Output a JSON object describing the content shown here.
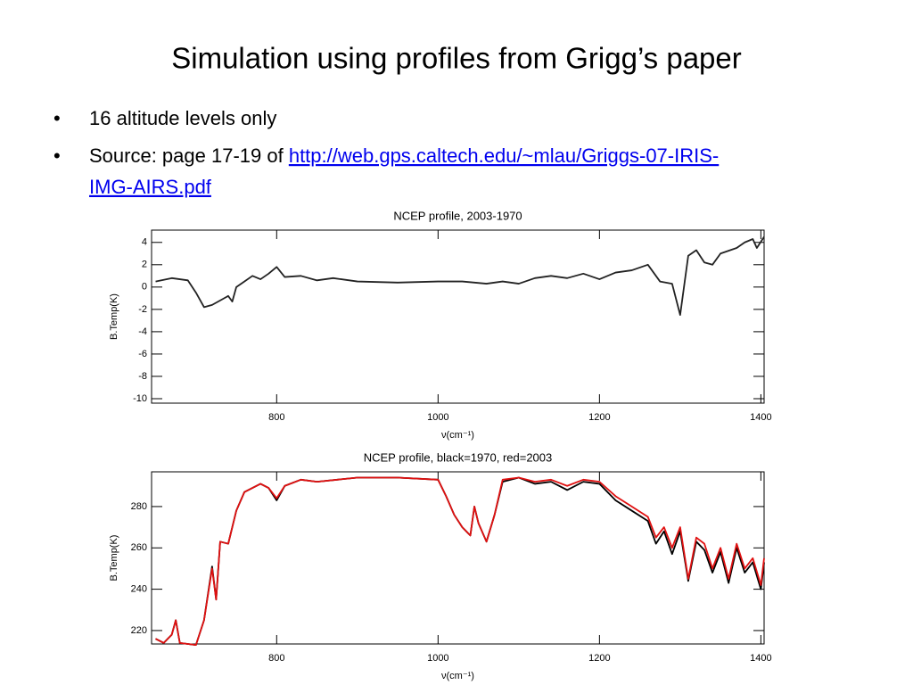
{
  "title": "Simulation using profiles from Grigg’s paper",
  "bullets": [
    {
      "text": "16 altitude levels only"
    },
    {
      "text": "Source: page 17-19 of ",
      "link": [
        "http://web.gps.caltech.edu/~mlau/Griggs-07-IRIS-",
        "IMG-AIRS.pdf"
      ]
    }
  ],
  "chart_data": [
    {
      "type": "line",
      "title": "NCEP profile, 2003-1970",
      "x_label": "ν(cm⁻¹)",
      "y_label": "B.Temp(K)",
      "x": [
        650,
        670,
        690,
        700,
        710,
        720,
        730,
        740,
        745,
        750,
        760,
        770,
        780,
        790,
        800,
        810,
        830,
        850,
        870,
        900,
        950,
        1000,
        1030,
        1060,
        1080,
        1100,
        1120,
        1140,
        1160,
        1180,
        1200,
        1220,
        1240,
        1260,
        1275,
        1290,
        1300,
        1310,
        1320,
        1330,
        1340,
        1350,
        1370,
        1380,
        1390,
        1395,
        1404
      ],
      "values": [
        0.5,
        0.8,
        0.6,
        -0.5,
        -1.8,
        -1.6,
        -1.2,
        -0.8,
        -1.3,
        0,
        0.5,
        1.0,
        0.7,
        1.2,
        1.8,
        0.9,
        1.0,
        0.6,
        0.8,
        0.5,
        0.4,
        0.5,
        0.5,
        0.3,
        0.5,
        0.3,
        0.8,
        1.0,
        0.8,
        1.2,
        0.7,
        1.3,
        1.5,
        2.0,
        0.5,
        0.3,
        -2.5,
        2.8,
        3.3,
        2.2,
        2.0,
        3.0,
        3.5,
        4.0,
        4.3,
        3.5,
        4.5
      ],
      "color": "#222222",
      "xlim": [
        645,
        1404
      ],
      "ylim": [
        -10.4,
        5.1
      ],
      "xticks": [
        800,
        1000,
        1200,
        1400
      ],
      "yticks": [
        4,
        2,
        0,
        -2,
        -4,
        -6,
        -8,
        -10
      ]
    },
    {
      "type": "line",
      "title": "NCEP profile, black=1970, red=2003",
      "x_label": "ν(cm⁻¹)",
      "y_label": "B.Temp(K)",
      "x": [
        650,
        660,
        670,
        675,
        680,
        700,
        710,
        720,
        725,
        730,
        740,
        750,
        760,
        770,
        780,
        790,
        800,
        810,
        830,
        850,
        900,
        950,
        1000,
        1010,
        1020,
        1030,
        1040,
        1045,
        1050,
        1060,
        1070,
        1080,
        1100,
        1120,
        1140,
        1160,
        1180,
        1200,
        1220,
        1240,
        1260,
        1270,
        1280,
        1290,
        1300,
        1310,
        1320,
        1330,
        1340,
        1350,
        1360,
        1370,
        1380,
        1390,
        1400,
        1404
      ],
      "series": [
        {
          "color": "#000000",
          "values": [
            216,
            214,
            218,
            225,
            214,
            213,
            225,
            251,
            235,
            263,
            262,
            278,
            287,
            289,
            291,
            289,
            283,
            290,
            293,
            292,
            294,
            294,
            293,
            285,
            276,
            270,
            266,
            280,
            272,
            263,
            276,
            292,
            294,
            291,
            292,
            288,
            292,
            291,
            283,
            278,
            273,
            262,
            268,
            257,
            268,
            244,
            263,
            259,
            248,
            258,
            243,
            260,
            248,
            253,
            240,
            253
          ]
        },
        {
          "color": "#e01010",
          "values": [
            216,
            214,
            218,
            225,
            214,
            213,
            225,
            250,
            235,
            263,
            262,
            278,
            287,
            289,
            291,
            289,
            284,
            290,
            293,
            292,
            294,
            294,
            293,
            285,
            276,
            270,
            266,
            280,
            272,
            263,
            276,
            293,
            294,
            292,
            293,
            290,
            293,
            292,
            285,
            280,
            275,
            265,
            270,
            260,
            270,
            245,
            265,
            262,
            250,
            260,
            245,
            262,
            250,
            255,
            242,
            255
          ]
        }
      ],
      "xlim": [
        645,
        1404
      ],
      "ylim": [
        213.5,
        296.8
      ],
      "xticks": [
        800,
        1000,
        1200,
        1400
      ],
      "yticks": [
        220,
        240,
        260,
        280
      ]
    }
  ]
}
